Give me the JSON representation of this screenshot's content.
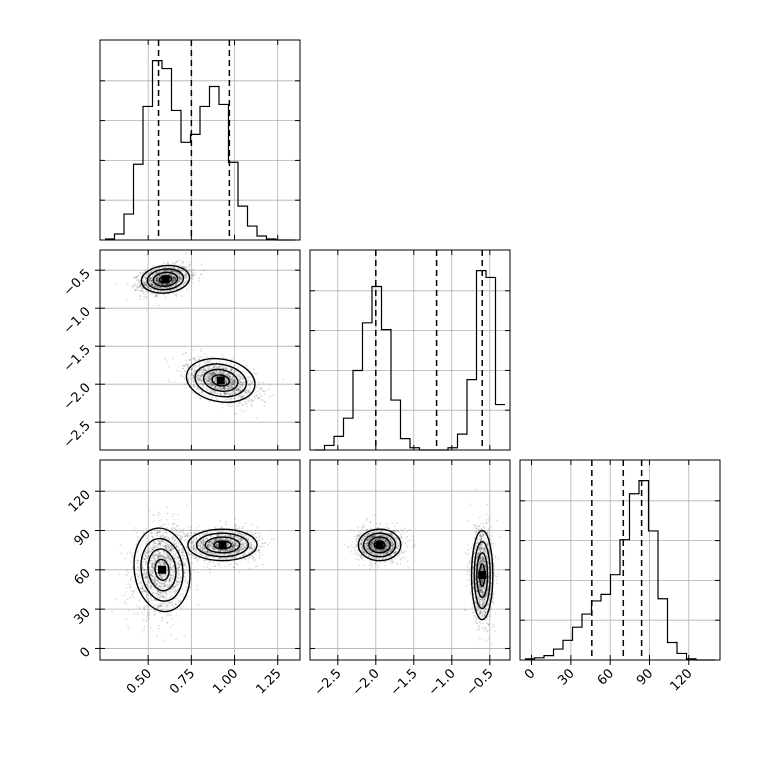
{
  "chart_data": {
    "type": "corner",
    "grid": true,
    "parameters": [
      "p0",
      "p1",
      "p2"
    ],
    "axes": {
      "p0": {
        "range": [
          0.25,
          1.35
        ],
        "ticks": [
          0.5,
          0.75,
          1.0,
          1.25
        ],
        "tick_labels": [
          "0.50",
          "0.75",
          "1.00",
          "1.25"
        ]
      },
      "p1": {
        "range": [
          -2.8,
          -0.3
        ],
        "ticks": [
          -2.5,
          -2.0,
          -1.5,
          -1.0,
          -0.5
        ],
        "tick_labels": [
          "−2.5",
          "−2.0",
          "−1.5",
          "−1.0",
          "−0.5"
        ]
      },
      "p2": {
        "range": [
          -5,
          140
        ],
        "ticks": [
          0,
          30,
          60,
          90,
          120
        ],
        "tick_labels": [
          "0",
          "30",
          "60",
          "90",
          "120"
        ]
      }
    },
    "histograms": [
      {
        "param": "p0",
        "bin_edges": [
          0.25,
          0.305,
          0.36,
          0.415,
          0.47,
          0.525,
          0.58,
          0.635,
          0.69,
          0.745,
          0.8,
          0.855,
          0.91,
          0.965,
          1.02,
          1.075,
          1.13,
          1.185,
          1.24,
          1.295,
          1.35
        ],
        "counts": [
          0.5,
          3,
          13,
          38,
          67,
          90,
          86,
          65,
          49,
          53,
          67,
          77,
          68,
          39,
          17,
          7,
          2,
          0.5,
          0,
          0
        ],
        "quantiles": [
          0.56,
          0.75,
          0.97
        ]
      },
      {
        "param": "p1",
        "bin_edges": [
          -2.8,
          -2.675,
          -2.55,
          -2.425,
          -2.3,
          -2.175,
          -2.05,
          -1.925,
          -1.8,
          -1.675,
          -1.55,
          -1.425,
          -1.3,
          -1.175,
          -1.05,
          -0.925,
          -0.8,
          -0.675,
          -0.55,
          -0.425,
          -0.3
        ],
        "counts": [
          0,
          2,
          6,
          14,
          35,
          56,
          72,
          53,
          22,
          5,
          1,
          0,
          0,
          0,
          1,
          7,
          31,
          79,
          76,
          20
        ],
        "quantiles": [
          -2.0,
          -1.2,
          -0.6
        ]
      },
      {
        "param": "p2",
        "bin_edges": [
          -5,
          2.25,
          9.5,
          16.75,
          24,
          31.25,
          38.5,
          45.75,
          53,
          60.25,
          67.5,
          74.75,
          82,
          89.25,
          96.5,
          103.75,
          111,
          118.25,
          125.5,
          132.75,
          140
        ],
        "counts": [
          0.5,
          1,
          2,
          5,
          9,
          15,
          21,
          27,
          30,
          39,
          55,
          76,
          82,
          59,
          28,
          8,
          3,
          0.5,
          0,
          0
        ],
        "quantiles": [
          46,
          70,
          84
        ]
      }
    ],
    "scatter_2d": [
      {
        "x": "p0",
        "y": "p1",
        "clusters": [
          {
            "center": [
              0.6,
              -0.62
            ],
            "spread": [
              0.07,
              0.09
            ],
            "rho": 0.3
          },
          {
            "center": [
              0.92,
              -1.95
            ],
            "spread": [
              0.1,
              0.14
            ],
            "rho": -0.5
          }
        ]
      },
      {
        "x": "p0",
        "y": "p2",
        "clusters": [
          {
            "center": [
              0.58,
              60
            ],
            "spread": [
              0.08,
              16
            ],
            "rho": 0.15
          },
          {
            "center": [
              0.93,
              79
            ],
            "spread": [
              0.1,
              6
            ],
            "rho": 0.0
          }
        ]
      },
      {
        "x": "p1",
        "y": "p2",
        "clusters": [
          {
            "center": [
              -1.95,
              79
            ],
            "spread": [
              0.14,
              6
            ],
            "rho": 0.0
          },
          {
            "center": [
              -0.6,
              56
            ],
            "spread": [
              0.07,
              17
            ],
            "rho": 0.0
          }
        ]
      }
    ]
  }
}
